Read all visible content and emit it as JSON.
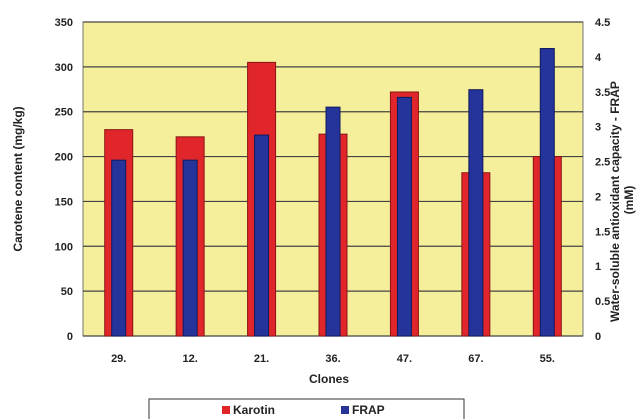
{
  "chart_data": {
    "type": "bar",
    "categories": [
      "29.",
      "12.",
      "21.",
      "36.",
      "47.",
      "67.",
      "55."
    ],
    "series": [
      {
        "name": "Karotin",
        "axis": "left",
        "values": [
          230,
          222,
          305,
          225,
          272,
          182,
          200
        ]
      },
      {
        "name": "FRAP",
        "axis": "right",
        "values": [
          2.52,
          2.52,
          2.88,
          3.28,
          3.42,
          3.53,
          4.12
        ]
      }
    ],
    "xlabel": "Clones",
    "ylabel": "Carotene content (mg/kg)",
    "y2label_line1": "Water-soluble antioxidant capacity - FRAP",
    "y2label_line2": "(mM)",
    "ylim": [
      0,
      350
    ],
    "yticks": [
      "0",
      "50",
      "100",
      "150",
      "200",
      "250",
      "300",
      "350"
    ],
    "y2lim": [
      0,
      4.5
    ],
    "y2ticks": [
      "0",
      "0.5",
      "1",
      "1.5",
      "2",
      "2.5",
      "3",
      "3.5",
      "4",
      "4.5"
    ],
    "grid": true,
    "legend_position": "bottom",
    "colors": {
      "plot_background": "#F5EE9A",
      "karotin": "#E0262A",
      "karotin_edge": "#8A1414",
      "frap": "#24349B",
      "frap_edge": "#101A5E",
      "grid": "#444444"
    }
  }
}
